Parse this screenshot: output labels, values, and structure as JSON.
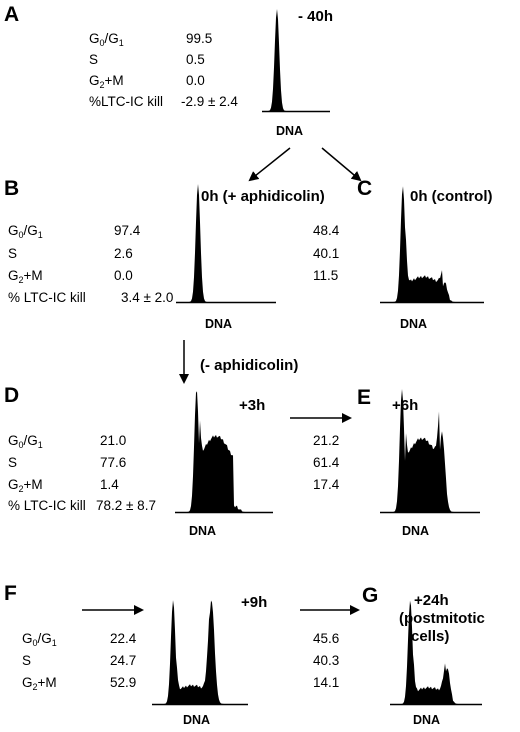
{
  "panels": {
    "A": {
      "letter": "A",
      "time": "- 40h",
      "g0g1": "99.5",
      "s": "0.5",
      "g2m": "0.0",
      "ltc": "-2.9 ± 2.4"
    },
    "B": {
      "letter": "B",
      "time": "0h (+ aphidicolin)",
      "g0g1": "97.4",
      "s": "2.6",
      "g2m": "0.0",
      "ltc": "3.4 ± 2.0"
    },
    "C": {
      "letter": "C",
      "time": "0h (control)",
      "g0g1": "48.4",
      "s": "40.1",
      "g2m": "11.5"
    },
    "D": {
      "letter": "D",
      "time": "+3h",
      "g0g1": "21.0",
      "s": "77.6",
      "g2m": "1.4",
      "ltc": "78.2 ± 8.7"
    },
    "E": {
      "letter": "E",
      "time": "+6h",
      "g0g1": "21.2",
      "s": "61.4",
      "g2m": "17.4"
    },
    "F": {
      "letter": "F",
      "time": "+9h",
      "g0g1": "22.4",
      "s": "24.7",
      "g2m": "52.9"
    },
    "G": {
      "letter": "G",
      "time_line1": "+24h",
      "time_line2": "(postmitotic",
      "time_line3": "cells)",
      "g0g1": "45.6",
      "s": "40.3",
      "g2m": "14.1"
    }
  },
  "labels": {
    "g0g1_main": "G",
    "g0g1_sub1": "0",
    "g0g1_sep": "/G",
    "g0g1_sub2": "1",
    "s": "S",
    "g2m_main": "G",
    "g2m_sub": "2",
    "g2m_rest": "+M",
    "ltc_kill_a": "%LTC-IC kill",
    "ltc_kill": "% LTC-IC kill",
    "dna": "DNA",
    "minus_aphidicolin": "(- aphidicolin)"
  },
  "histograms": {
    "A": {
      "g1": 1.0,
      "s": 0.0,
      "g2": 0.0
    },
    "B": {
      "g1": 1.0,
      "s": 0.0,
      "g2": 0.0
    },
    "C": {
      "g1": 1.0,
      "s": 0.22,
      "g2": 0.17
    },
    "D": {
      "g1": 1.0,
      "s": 0.62,
      "g2": 0.05
    },
    "E": {
      "g1": 1.0,
      "s": 0.6,
      "g2": 0.65
    },
    "F": {
      "g1": 1.0,
      "s": 0.18,
      "g2": 1.0
    },
    "G": {
      "g1": 1.0,
      "s": 0.16,
      "g2": 0.35
    }
  }
}
